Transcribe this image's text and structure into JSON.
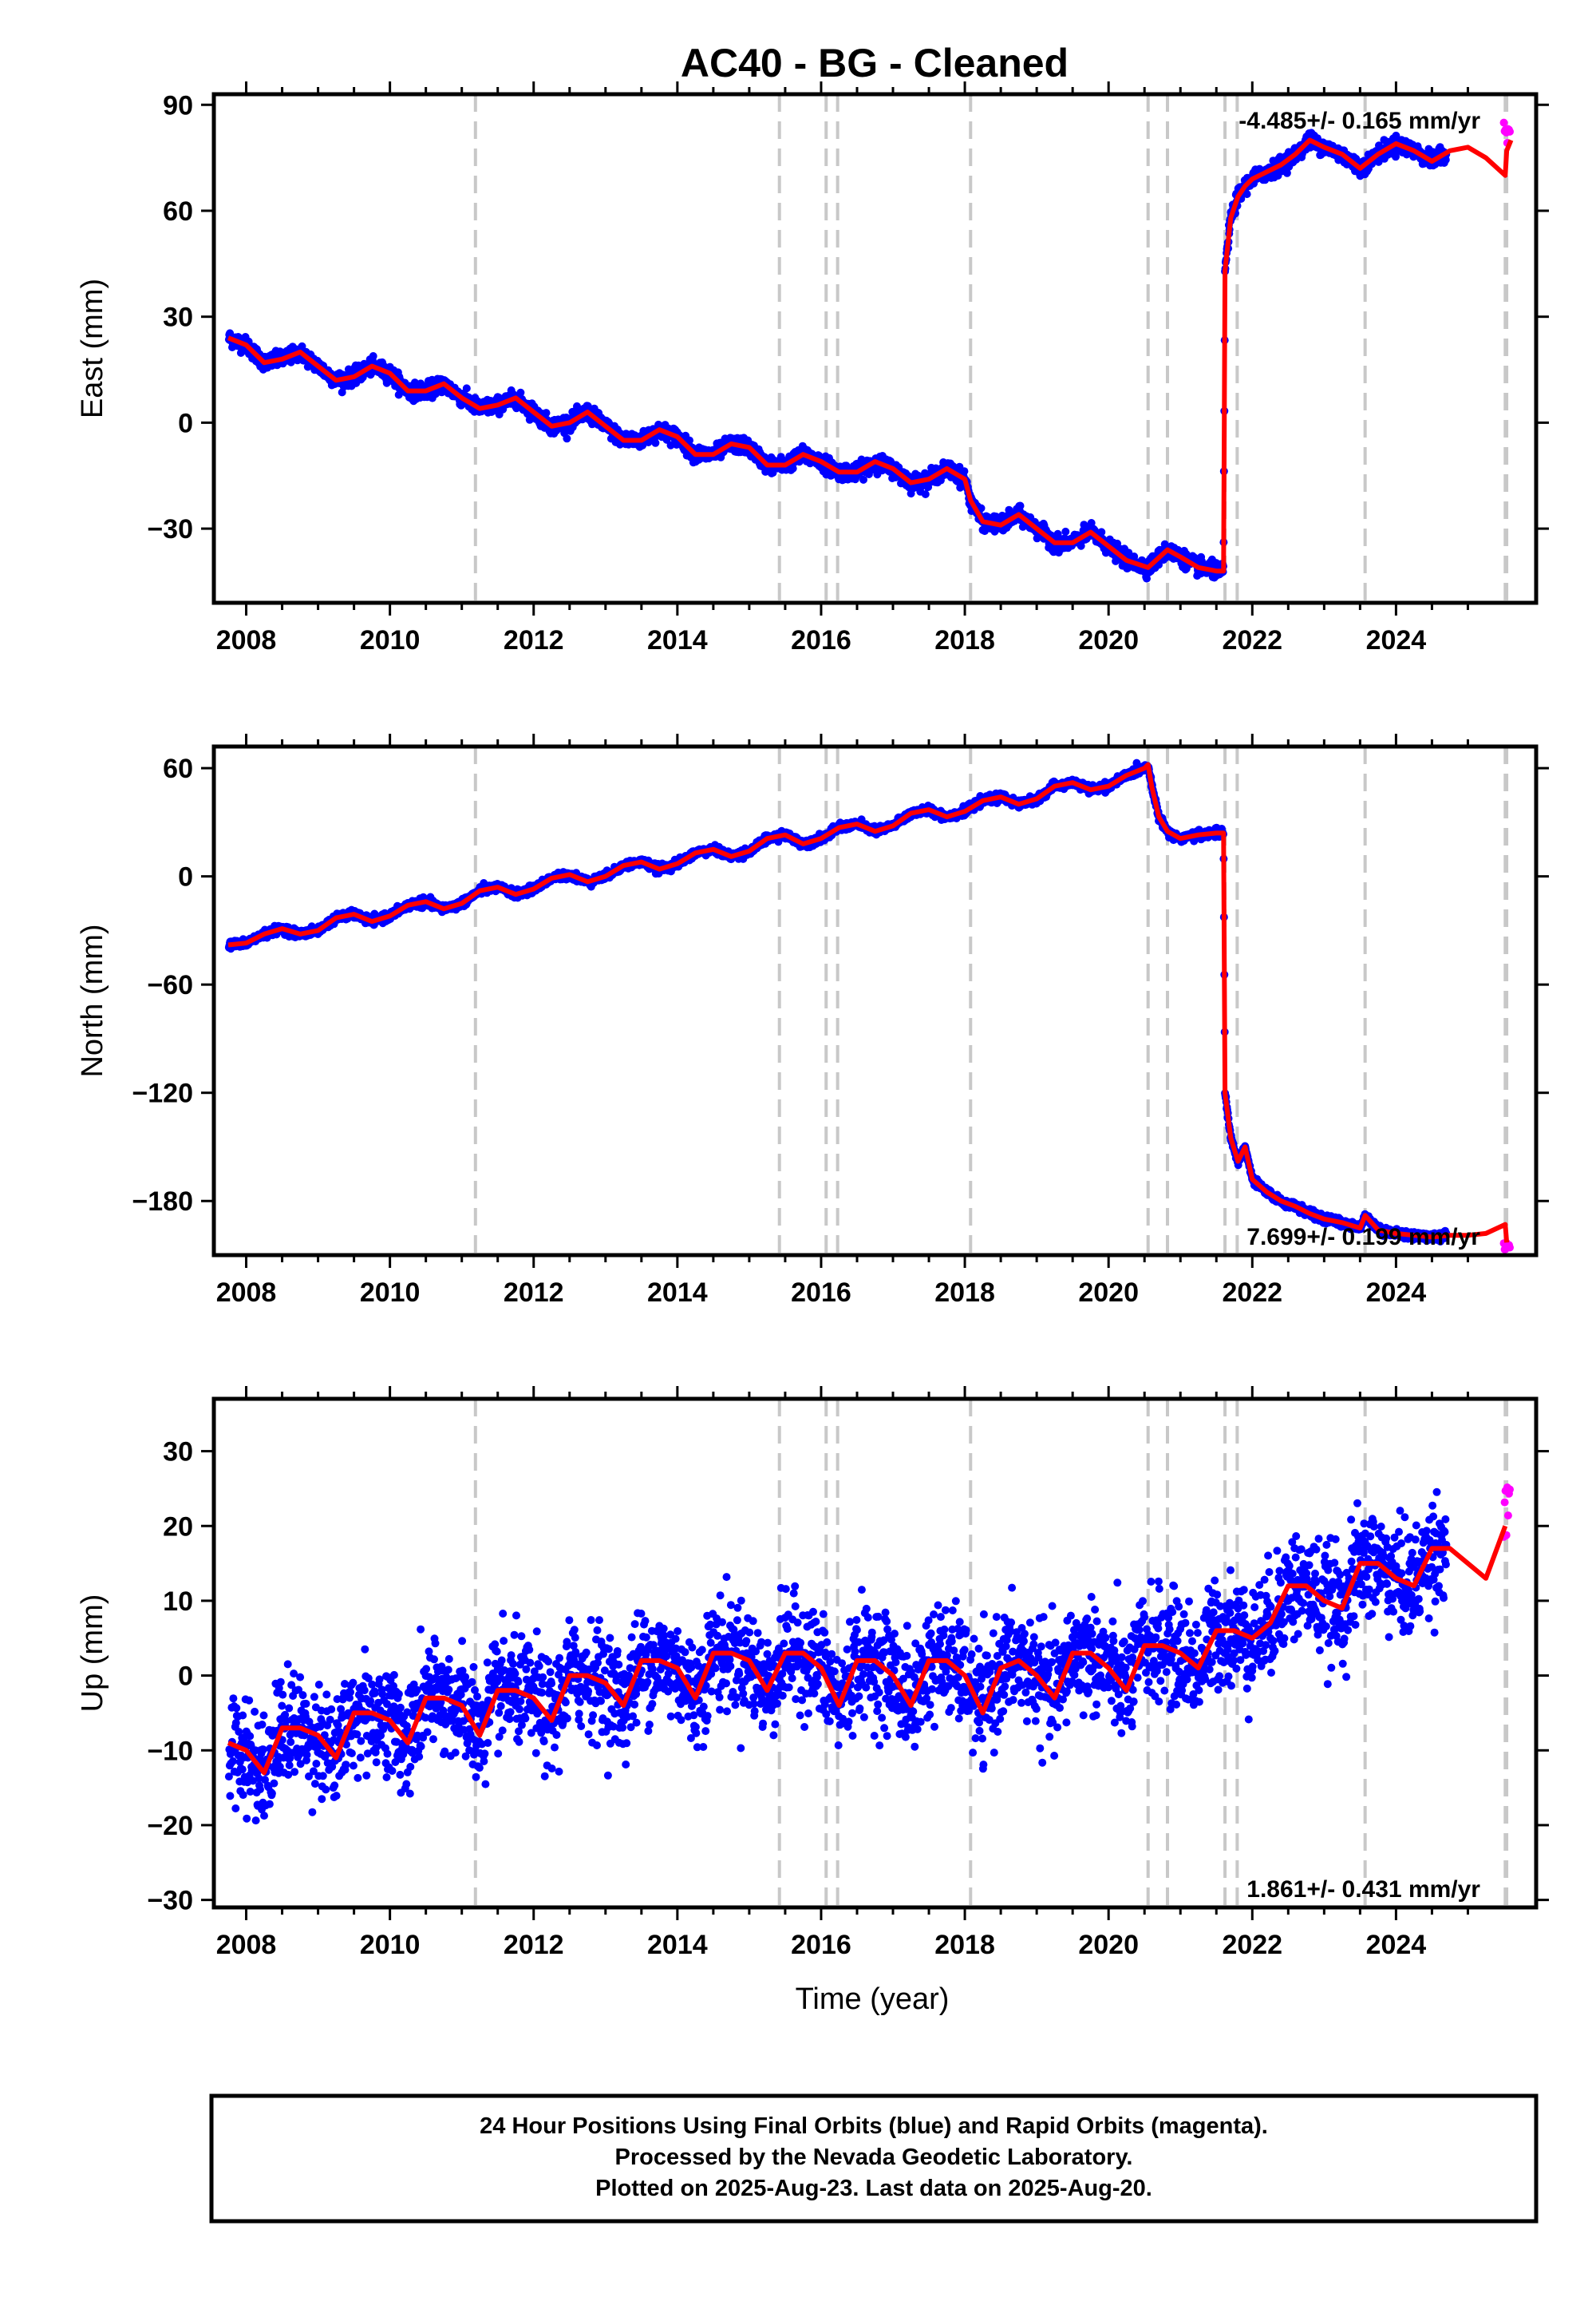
{
  "title": "AC40  - BG - Cleaned",
  "xlabel": "Time (year)",
  "footer": {
    "line1": "24 Hour Positions Using Final Orbits (blue) and Rapid Orbits (magenta).",
    "line2": "Processed by the Nevada Geodetic Laboratory.",
    "line3": "Plotted on 2025-Aug-23. Last data on 2025-Aug-20."
  },
  "colors": {
    "final_orbits": "#0000ff",
    "rapid_orbits": "#ff00ff",
    "model": "#ff0000",
    "event_lines": "#c8c8c8"
  },
  "chart_data": [
    {
      "type": "scatter",
      "name": "east",
      "ylabel": "East (mm)",
      "rate_text": "-4.485+/- 0.165 mm/yr",
      "xlim": [
        2007.55,
        2025.95
      ],
      "ylim": [
        -51,
        93
      ],
      "yticks": [
        -30,
        0,
        30,
        60,
        90
      ],
      "xticks": [
        2008,
        2010,
        2012,
        2014,
        2016,
        2018,
        2020,
        2022,
        2024
      ],
      "event_lines": [
        2011.19,
        2015.42,
        2016.07,
        2016.23,
        2018.08,
        2020.55,
        2020.82,
        2021.62,
        2021.79,
        2023.57,
        2025.52,
        2025.54
      ],
      "series": [
        {
          "name": "model",
          "x": [
            2007.75,
            2008.0,
            2008.25,
            2008.5,
            2008.75,
            2009.0,
            2009.25,
            2009.5,
            2009.75,
            2010.0,
            2010.25,
            2010.5,
            2010.75,
            2011.0,
            2011.25,
            2011.5,
            2011.75,
            2012.0,
            2012.25,
            2012.5,
            2012.75,
            2013.0,
            2013.25,
            2013.5,
            2013.75,
            2014.0,
            2014.25,
            2014.5,
            2014.75,
            2015.0,
            2015.25,
            2015.5,
            2015.75,
            2016.0,
            2016.25,
            2016.5,
            2016.75,
            2017.0,
            2017.25,
            2017.5,
            2017.75,
            2018.0,
            2018.08,
            2018.25,
            2018.5,
            2018.75,
            2019.0,
            2019.25,
            2019.5,
            2019.75,
            2020.0,
            2020.25,
            2020.55,
            2020.82,
            2021.0,
            2021.25,
            2021.5,
            2021.6,
            2021.62,
            2021.7,
            2021.8,
            2021.9,
            2022.0,
            2022.2,
            2022.4,
            2022.6,
            2022.8,
            2023.0,
            2023.25,
            2023.5,
            2023.75,
            2024.0,
            2024.25,
            2024.5,
            2024.75,
            2025.0,
            2025.25,
            2025.52,
            2025.54,
            2025.6
          ],
          "y": [
            24,
            22,
            17,
            18,
            20,
            16,
            12,
            13,
            16,
            14,
            9,
            9,
            11,
            7,
            4,
            5,
            7,
            3,
            -1,
            0,
            3,
            -1,
            -5,
            -5,
            -2,
            -4,
            -9,
            -9,
            -6,
            -7,
            -12,
            -12,
            -9,
            -11,
            -14,
            -14,
            -11,
            -13,
            -17,
            -16,
            -13,
            -16,
            -22,
            -28,
            -29,
            -26,
            -30,
            -34,
            -34,
            -31,
            -35,
            -39,
            -41,
            -36,
            -38,
            -41,
            -42,
            -42,
            43,
            58,
            64,
            67,
            69,
            71,
            73,
            76,
            80,
            78,
            76,
            72,
            76,
            79,
            77,
            74,
            77,
            78,
            75,
            70,
            77,
            80
          ]
        }
      ]
    },
    {
      "type": "scatter",
      "name": "north",
      "ylabel": "North (mm)",
      "rate_text": "7.699+/- 0.199 mm/yr",
      "xlim": [
        2007.55,
        2025.95
      ],
      "ylim": [
        -210,
        72
      ],
      "yticks": [
        -180,
        -120,
        -60,
        0,
        60
      ],
      "xticks": [
        2008,
        2010,
        2012,
        2014,
        2016,
        2018,
        2020,
        2022,
        2024
      ],
      "event_lines": [
        2011.19,
        2015.42,
        2016.07,
        2016.23,
        2018.08,
        2020.55,
        2020.82,
        2021.62,
        2021.79,
        2023.57,
        2025.52,
        2025.54
      ],
      "series": [
        {
          "name": "model",
          "x": [
            2007.75,
            2008.0,
            2008.25,
            2008.5,
            2008.75,
            2009.0,
            2009.25,
            2009.5,
            2009.75,
            2010.0,
            2010.25,
            2010.5,
            2010.75,
            2011.0,
            2011.25,
            2011.5,
            2011.75,
            2012.0,
            2012.25,
            2012.5,
            2012.75,
            2013.0,
            2013.25,
            2013.5,
            2013.75,
            2014.0,
            2014.25,
            2014.5,
            2014.75,
            2015.0,
            2015.25,
            2015.5,
            2015.75,
            2016.0,
            2016.25,
            2016.5,
            2016.75,
            2017.0,
            2017.25,
            2017.5,
            2017.75,
            2018.0,
            2018.25,
            2018.5,
            2018.75,
            2019.0,
            2019.25,
            2019.5,
            2019.75,
            2020.0,
            2020.25,
            2020.5,
            2020.55,
            2020.6,
            2020.7,
            2020.82,
            2021.0,
            2021.25,
            2021.5,
            2021.6,
            2021.62,
            2021.7,
            2021.8,
            2021.9,
            2022.0,
            2022.2,
            2022.4,
            2022.6,
            2022.8,
            2023.0,
            2023.25,
            2023.5,
            2023.57,
            2023.75,
            2024.0,
            2024.25,
            2024.5,
            2024.75,
            2025.0,
            2025.25,
            2025.52,
            2025.54
          ],
          "y": [
            -38,
            -37,
            -32,
            -29,
            -32,
            -30,
            -23,
            -21,
            -25,
            -22,
            -16,
            -14,
            -18,
            -15,
            -8,
            -6,
            -10,
            -7,
            -1,
            1,
            -3,
            0,
            6,
            8,
            4,
            7,
            13,
            15,
            11,
            14,
            21,
            23,
            18,
            21,
            27,
            29,
            25,
            28,
            35,
            37,
            33,
            36,
            42,
            44,
            40,
            43,
            50,
            52,
            48,
            50,
            56,
            60,
            62,
            50,
            33,
            25,
            21,
            23,
            24,
            24,
            -120,
            -145,
            -158,
            -150,
            -168,
            -175,
            -180,
            -183,
            -187,
            -190,
            -192,
            -195,
            -188,
            -196,
            -198,
            -199,
            -200,
            -199,
            -199,
            -198,
            -193,
            -203
          ]
        }
      ]
    },
    {
      "type": "scatter",
      "name": "up",
      "ylabel": "Up (mm)",
      "rate_text": "1.861+/- 0.431 mm/yr",
      "xlim": [
        2007.55,
        2025.95
      ],
      "ylim": [
        -31,
        37
      ],
      "yticks": [
        -30,
        -20,
        -10,
        0,
        10,
        20,
        30
      ],
      "xticks": [
        2008,
        2010,
        2012,
        2014,
        2016,
        2018,
        2020,
        2022,
        2024
      ],
      "event_lines": [
        2011.19,
        2015.42,
        2016.07,
        2016.23,
        2018.08,
        2020.55,
        2020.82,
        2021.62,
        2021.79,
        2023.57,
        2025.52,
        2025.54
      ],
      "series": [
        {
          "name": "model",
          "x": [
            2007.75,
            2008.0,
            2008.25,
            2008.5,
            2008.75,
            2009.0,
            2009.25,
            2009.5,
            2009.75,
            2010.0,
            2010.25,
            2010.5,
            2010.75,
            2011.0,
            2011.25,
            2011.5,
            2011.75,
            2012.0,
            2012.25,
            2012.5,
            2012.75,
            2013.0,
            2013.25,
            2013.5,
            2013.75,
            2014.0,
            2014.25,
            2014.5,
            2014.75,
            2015.0,
            2015.25,
            2015.5,
            2015.75,
            2016.0,
            2016.25,
            2016.5,
            2016.75,
            2017.0,
            2017.25,
            2017.5,
            2017.75,
            2018.0,
            2018.25,
            2018.5,
            2018.75,
            2019.0,
            2019.25,
            2019.5,
            2019.75,
            2020.0,
            2020.25,
            2020.5,
            2020.75,
            2021.0,
            2021.25,
            2021.5,
            2021.75,
            2022.0,
            2022.25,
            2022.5,
            2022.75,
            2023.0,
            2023.25,
            2023.5,
            2023.75,
            2024.0,
            2024.25,
            2024.5,
            2024.75,
            2025.0,
            2025.25,
            2025.52
          ],
          "y": [
            -9,
            -10,
            -13,
            -7,
            -7,
            -8,
            -11,
            -5,
            -5,
            -6,
            -9,
            -3,
            -3,
            -4,
            -8,
            -2,
            -2,
            -3,
            -6,
            0,
            0,
            -1,
            -4,
            2,
            2,
            1,
            -3,
            3,
            3,
            2,
            -2,
            3,
            3,
            1,
            -4,
            2,
            2,
            0,
            -4,
            2,
            2,
            0,
            -5,
            1,
            2,
            0,
            -3,
            3,
            3,
            1,
            -2,
            4,
            4,
            3,
            1,
            6,
            6,
            5,
            7,
            12,
            12,
            10,
            9,
            15,
            15,
            13,
            12,
            17,
            17,
            15,
            13,
            20
          ]
        }
      ]
    }
  ]
}
